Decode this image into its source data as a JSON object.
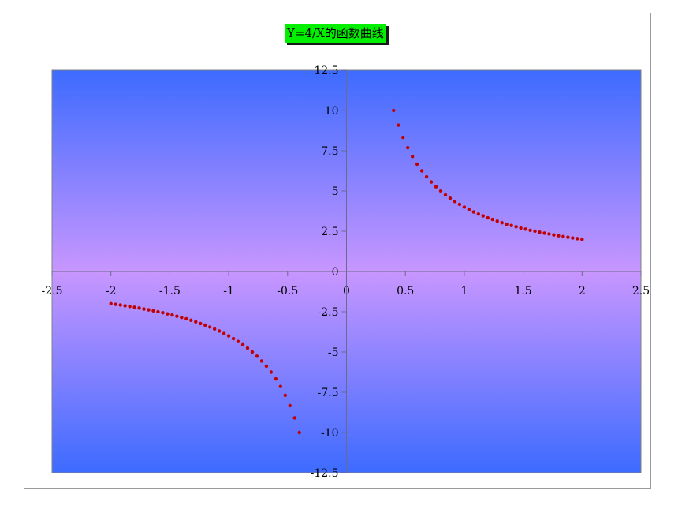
{
  "chart_data": {
    "type": "scatter",
    "title": "Y=4/X的函数曲线",
    "xlabel": "",
    "ylabel": "",
    "xlim": [
      -2.5,
      2.5
    ],
    "ylim": [
      -12.5,
      12.5
    ],
    "x_ticks": [
      -2.5,
      -2,
      -1.5,
      -1,
      -0.5,
      0,
      0.5,
      1,
      1.5,
      2,
      2.5
    ],
    "x_tick_labels": [
      "-2.5",
      "-2",
      "-1.5",
      "-1",
      "-0.5",
      "0",
      "0.5",
      "1",
      "1.5",
      "2",
      "2.5"
    ],
    "y_ticks": [
      12.5,
      10,
      7.5,
      5,
      2.5,
      0,
      -2.5,
      -5,
      -7.5,
      -10,
      -12.5
    ],
    "y_tick_labels": [
      "12.5",
      "10",
      "7.5",
      "5",
      "2.5",
      "0",
      "-2.5",
      "-5",
      "-7.5",
      "-10",
      "-12.5"
    ],
    "grid": false,
    "legend": "none",
    "marker_color": "#c00000",
    "background_gradient": [
      "#3d6bff",
      "#c896ff",
      "#3d6bff"
    ],
    "series": [
      {
        "x": [
          -2.0,
          -1.96,
          -1.92,
          -1.88,
          -1.84,
          -1.8,
          -1.76,
          -1.72,
          -1.68,
          -1.64,
          -1.6,
          -1.56,
          -1.52,
          -1.48,
          -1.44,
          -1.4,
          -1.36,
          -1.32,
          -1.28,
          -1.24,
          -1.2,
          -1.16,
          -1.12,
          -1.08,
          -1.04,
          -1.0,
          -0.96,
          -0.92,
          -0.88,
          -0.84,
          -0.8,
          -0.76,
          -0.72,
          -0.68,
          -0.64,
          -0.6,
          -0.56,
          -0.52,
          -0.48,
          -0.44,
          -0.4,
          0.4,
          0.44,
          0.48,
          0.52,
          0.56,
          0.6,
          0.64,
          0.68,
          0.72,
          0.76,
          0.8,
          0.84,
          0.88,
          0.92,
          0.96,
          1.0,
          1.04,
          1.08,
          1.12,
          1.16,
          1.2,
          1.24,
          1.28,
          1.32,
          1.36,
          1.4,
          1.44,
          1.48,
          1.52,
          1.56,
          1.6,
          1.64,
          1.68,
          1.72,
          1.76,
          1.8,
          1.84,
          1.88,
          1.92,
          1.96,
          2.0
        ],
        "y": [
          -2.0,
          -2.04,
          -2.08,
          -2.13,
          -2.17,
          -2.22,
          -2.27,
          -2.33,
          -2.38,
          -2.44,
          -2.5,
          -2.56,
          -2.63,
          -2.7,
          -2.78,
          -2.86,
          -2.94,
          -3.03,
          -3.13,
          -3.23,
          -3.33,
          -3.45,
          -3.57,
          -3.7,
          -3.85,
          -4.0,
          -4.17,
          -4.35,
          -4.55,
          -4.76,
          -5.0,
          -5.26,
          -5.56,
          -5.88,
          -6.25,
          -6.67,
          -7.14,
          -7.69,
          -8.33,
          -9.09,
          -10.0,
          10.0,
          9.09,
          8.33,
          7.69,
          7.14,
          6.67,
          6.25,
          5.88,
          5.56,
          5.26,
          5.0,
          4.76,
          4.55,
          4.35,
          4.17,
          4.0,
          3.85,
          3.7,
          3.57,
          3.45,
          3.33,
          3.23,
          3.13,
          3.03,
          2.94,
          2.86,
          2.78,
          2.7,
          2.63,
          2.56,
          2.5,
          2.44,
          2.38,
          2.33,
          2.27,
          2.22,
          2.17,
          2.13,
          2.08,
          2.04,
          2.0
        ]
      }
    ]
  }
}
